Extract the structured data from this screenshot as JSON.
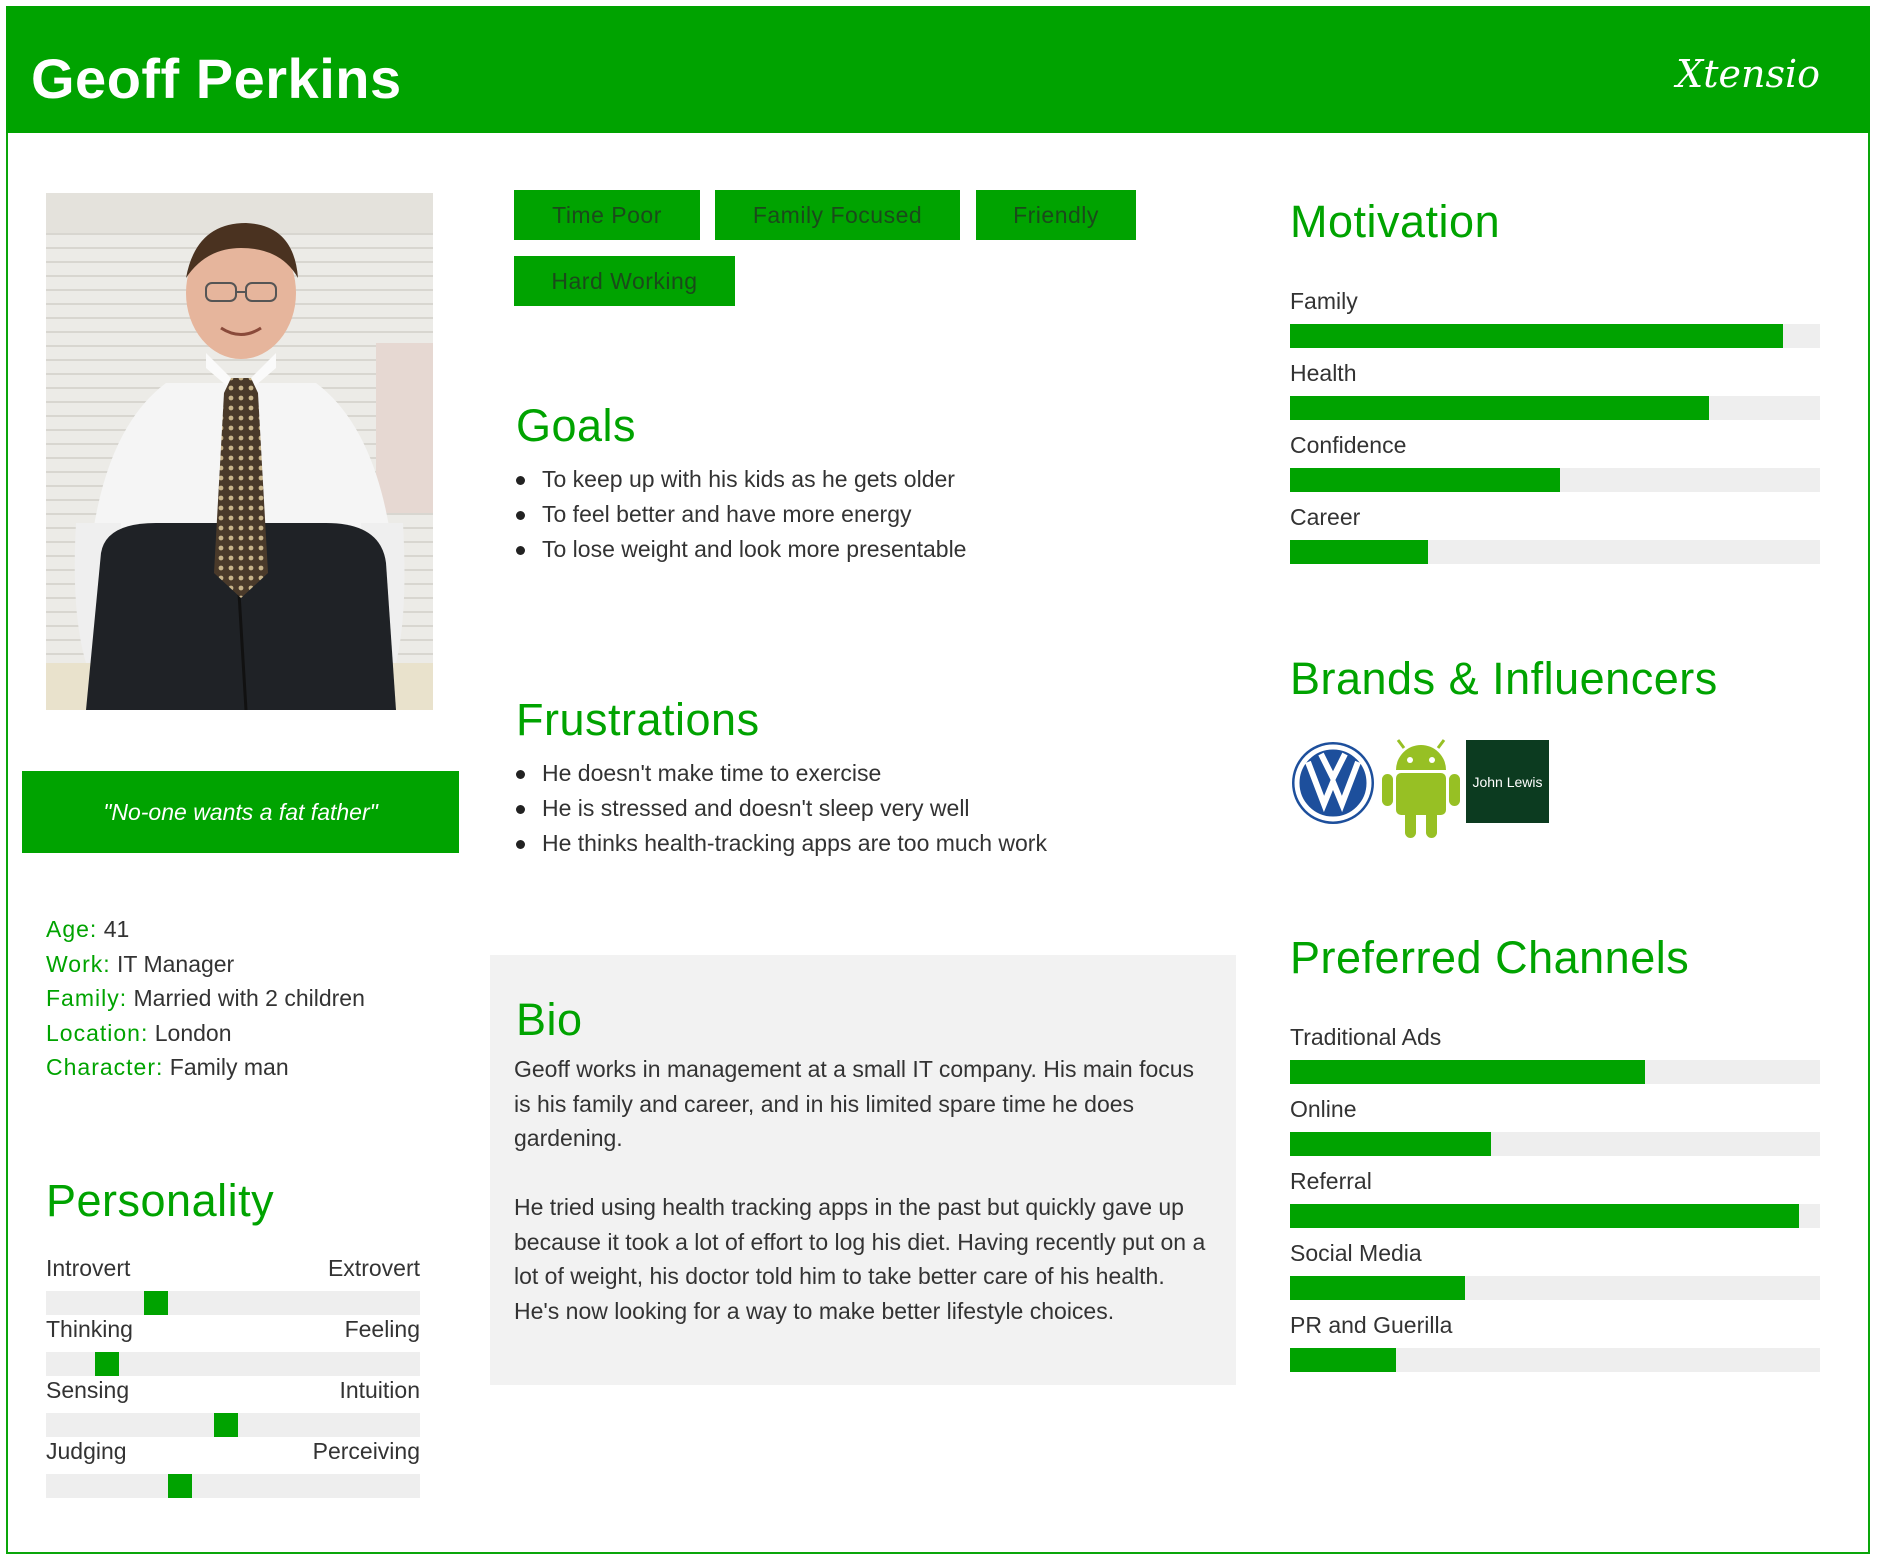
{
  "persona": {
    "name": "Geoff Perkins",
    "logo_text": "Xtensio",
    "quote": "\"No-one wants a fat father\"",
    "facts": [
      {
        "key": "Age:",
        "value": "41"
      },
      {
        "key": "Work:",
        "value": "IT Manager"
      },
      {
        "key": "Family:",
        "value": "Married with 2 children"
      },
      {
        "key": "Location:",
        "value": "London"
      },
      {
        "key": "Character:",
        "value": "Family man"
      }
    ],
    "tags": [
      "Time Poor",
      "Family Focused",
      "Friendly",
      "Hard Working"
    ]
  },
  "personality": {
    "title": "Personality",
    "traits": [
      {
        "left": "Introvert",
        "right": "Extrovert",
        "value": 0.28
      },
      {
        "left": "Thinking",
        "right": "Feeling",
        "value": 0.14
      },
      {
        "left": "Sensing",
        "right": "Intuition",
        "value": 0.48
      },
      {
        "left": "Judging",
        "right": "Perceiving",
        "value": 0.35
      }
    ]
  },
  "goals": {
    "title": "Goals",
    "items": [
      "To keep up with his kids as he gets older",
      "To feel better and have more energy",
      "To lose weight and look more presentable"
    ]
  },
  "frustrations": {
    "title": "Frustrations",
    "items": [
      "He doesn't make time to exercise",
      "He is stressed and doesn't sleep very well",
      "He thinks health-tracking apps are too much work"
    ]
  },
  "bio": {
    "title": "Bio",
    "paragraphs": [
      "Geoff works in management at a small IT company. His main focus is his family and career, and in his limited spare time he does gardening.",
      "He tried using health tracking apps in the past but quickly gave up because it took a lot of effort to log his diet. Having recently put on a lot of weight, his doctor told him to take better care of his health. He's now looking for a way to make better lifestyle choices."
    ]
  },
  "motivation": {
    "title": "Motivation",
    "items": [
      {
        "label": "Family",
        "value": 0.93
      },
      {
        "label": "Health",
        "value": 0.79
      },
      {
        "label": "Confidence",
        "value": 0.51
      },
      {
        "label": "Career",
        "value": 0.26
      }
    ]
  },
  "brands": {
    "title": "Brands & Influencers",
    "items": [
      {
        "name": "Volkswagen",
        "icon": "vw-logo-icon"
      },
      {
        "name": "Android",
        "icon": "android-logo-icon"
      },
      {
        "name": "John Lewis",
        "icon": "john-lewis-logo-icon",
        "text": "John Lewis"
      }
    ]
  },
  "channels": {
    "title": "Preferred Channels",
    "items": [
      {
        "label": "Traditional Ads",
        "value": 0.67
      },
      {
        "label": "Online",
        "value": 0.38
      },
      {
        "label": "Referral",
        "value": 0.96
      },
      {
        "label": "Social Media",
        "value": 0.33
      },
      {
        "label": "PR and Guerilla",
        "value": 0.2
      }
    ]
  },
  "colors": {
    "accent": "#00a300",
    "track": "#eeeeee",
    "bio_bg": "#f2f2f2",
    "john_lewis": "#0c3b20"
  }
}
